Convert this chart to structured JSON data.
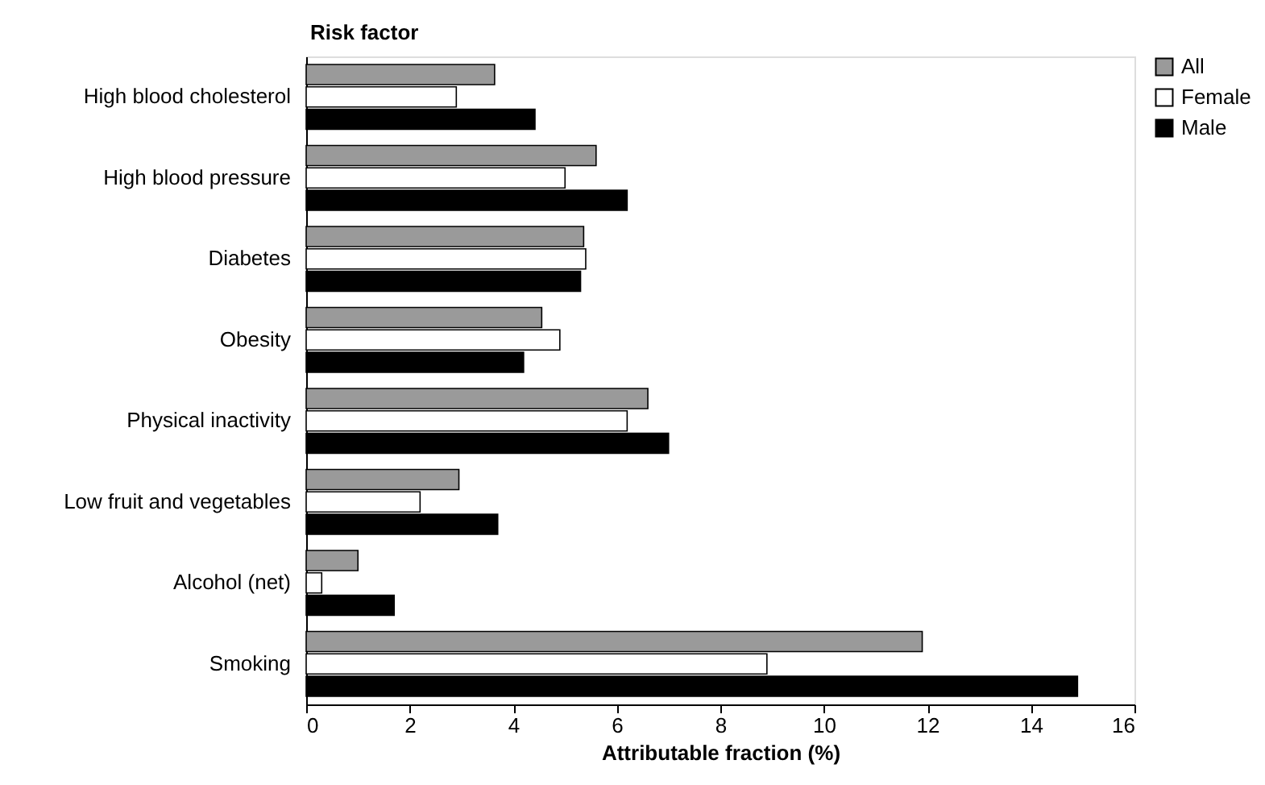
{
  "chart_data": {
    "type": "bar",
    "orientation": "horizontal",
    "ylabel": "Risk factor",
    "xlabel": "Attributable fraction (%)",
    "categories": [
      "High blood cholesterol",
      "High blood pressure",
      "Diabetes",
      "Obesity",
      "Physical inactivity",
      "Low fruit and vegetables",
      "Alcohol (net)",
      "Smoking"
    ],
    "series": [
      {
        "name": "All",
        "color": "#9a9a9a",
        "values": [
          3.64,
          5.6,
          5.36,
          4.55,
          6.6,
          2.95,
          1.0,
          11.9
        ]
      },
      {
        "name": "Female",
        "color": "#ffffff",
        "values": [
          2.9,
          5.0,
          5.4,
          4.9,
          6.2,
          2.2,
          0.3,
          8.9
        ]
      },
      {
        "name": "Male",
        "color": "#000000",
        "values": [
          4.42,
          6.2,
          5.3,
          4.2,
          7.0,
          3.7,
          1.7,
          14.9
        ]
      }
    ],
    "xlim": [
      0,
      16
    ],
    "xticks": [
      0,
      2,
      4,
      6,
      8,
      10,
      12,
      14,
      16
    ],
    "grid": false,
    "legend": "right"
  }
}
